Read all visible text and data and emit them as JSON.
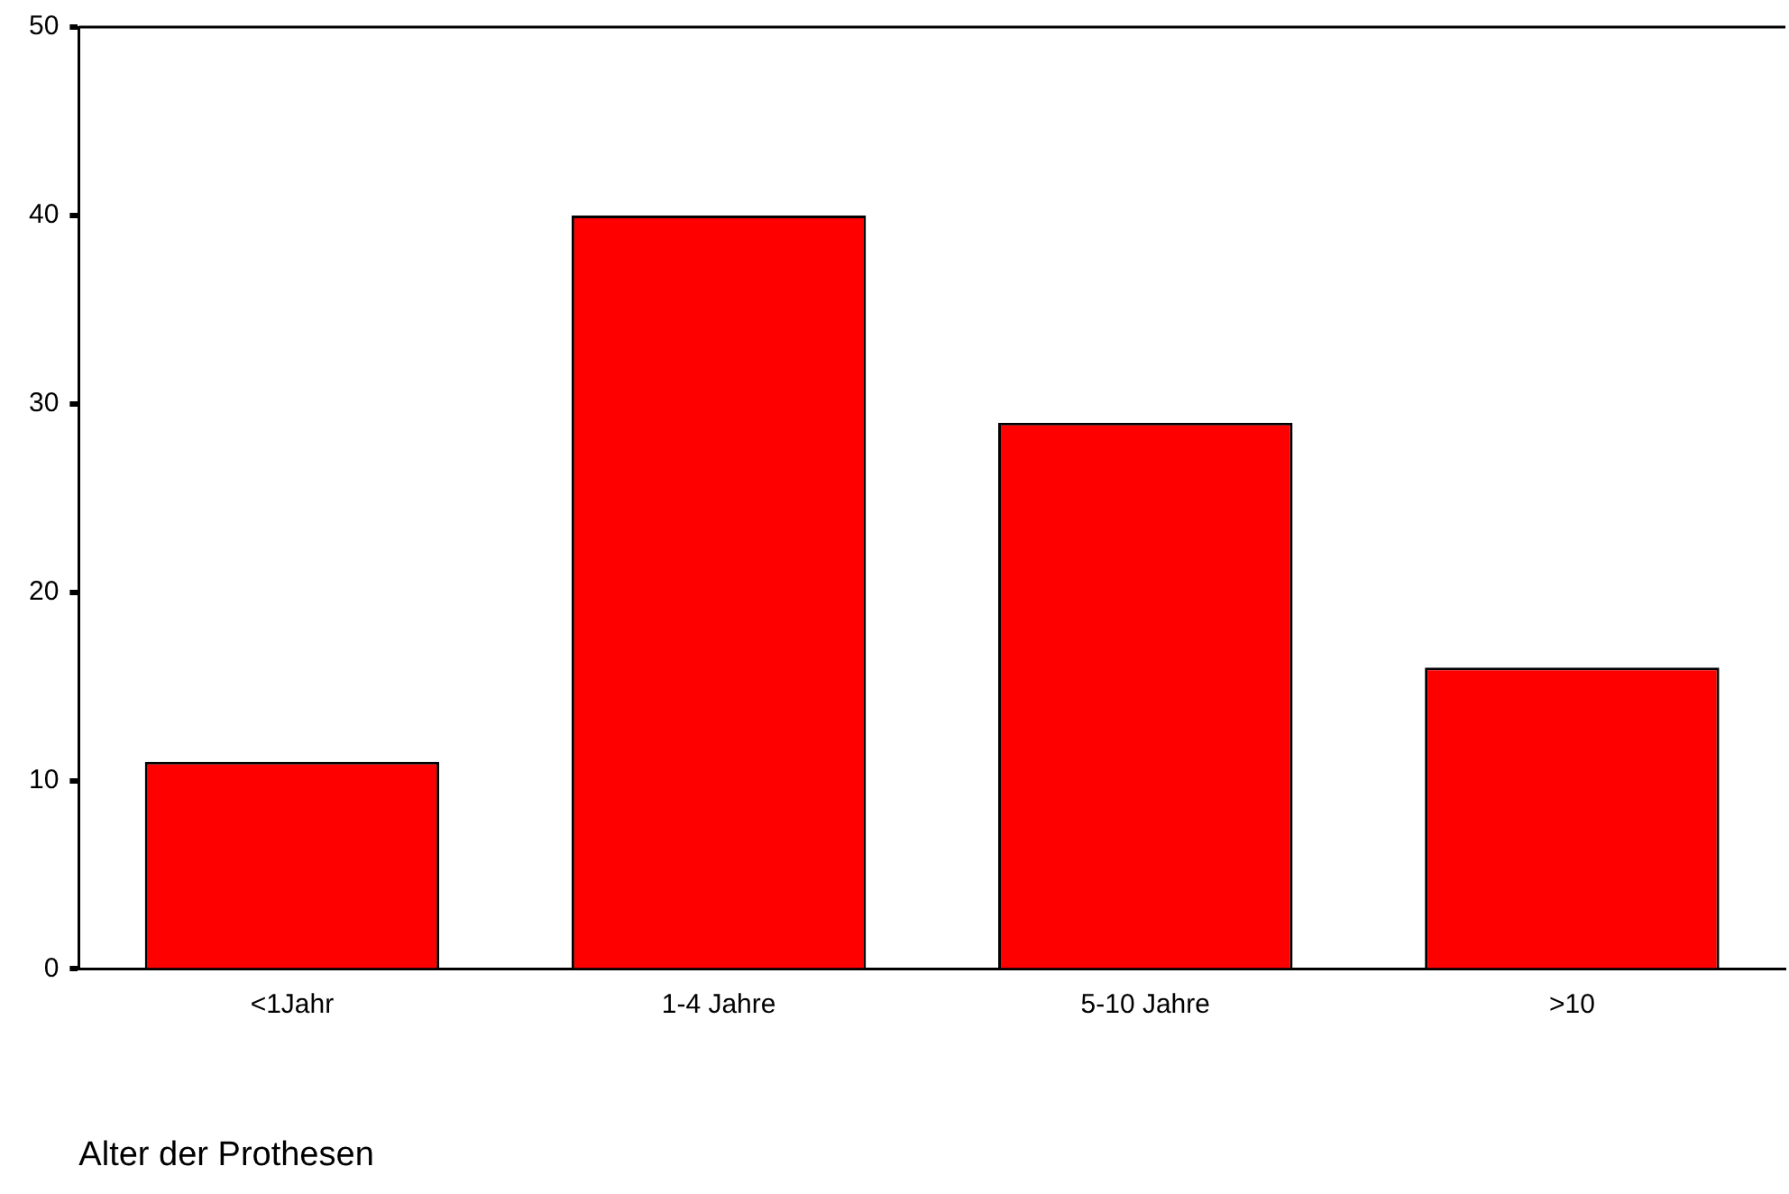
{
  "chart_data": {
    "type": "bar",
    "xlabel": "Alter der Prothesen",
    "categories": [
      "<1Jahr",
      "1-4 Jahre",
      "5-10 Jahre",
      ">10"
    ],
    "values": [
      11,
      40,
      29,
      16
    ],
    "color": "#ff0000",
    "ylim": [
      0,
      50
    ],
    "yticks": [
      0,
      10,
      20,
      30,
      40,
      50
    ],
    "grid": false,
    "legend": false
  }
}
